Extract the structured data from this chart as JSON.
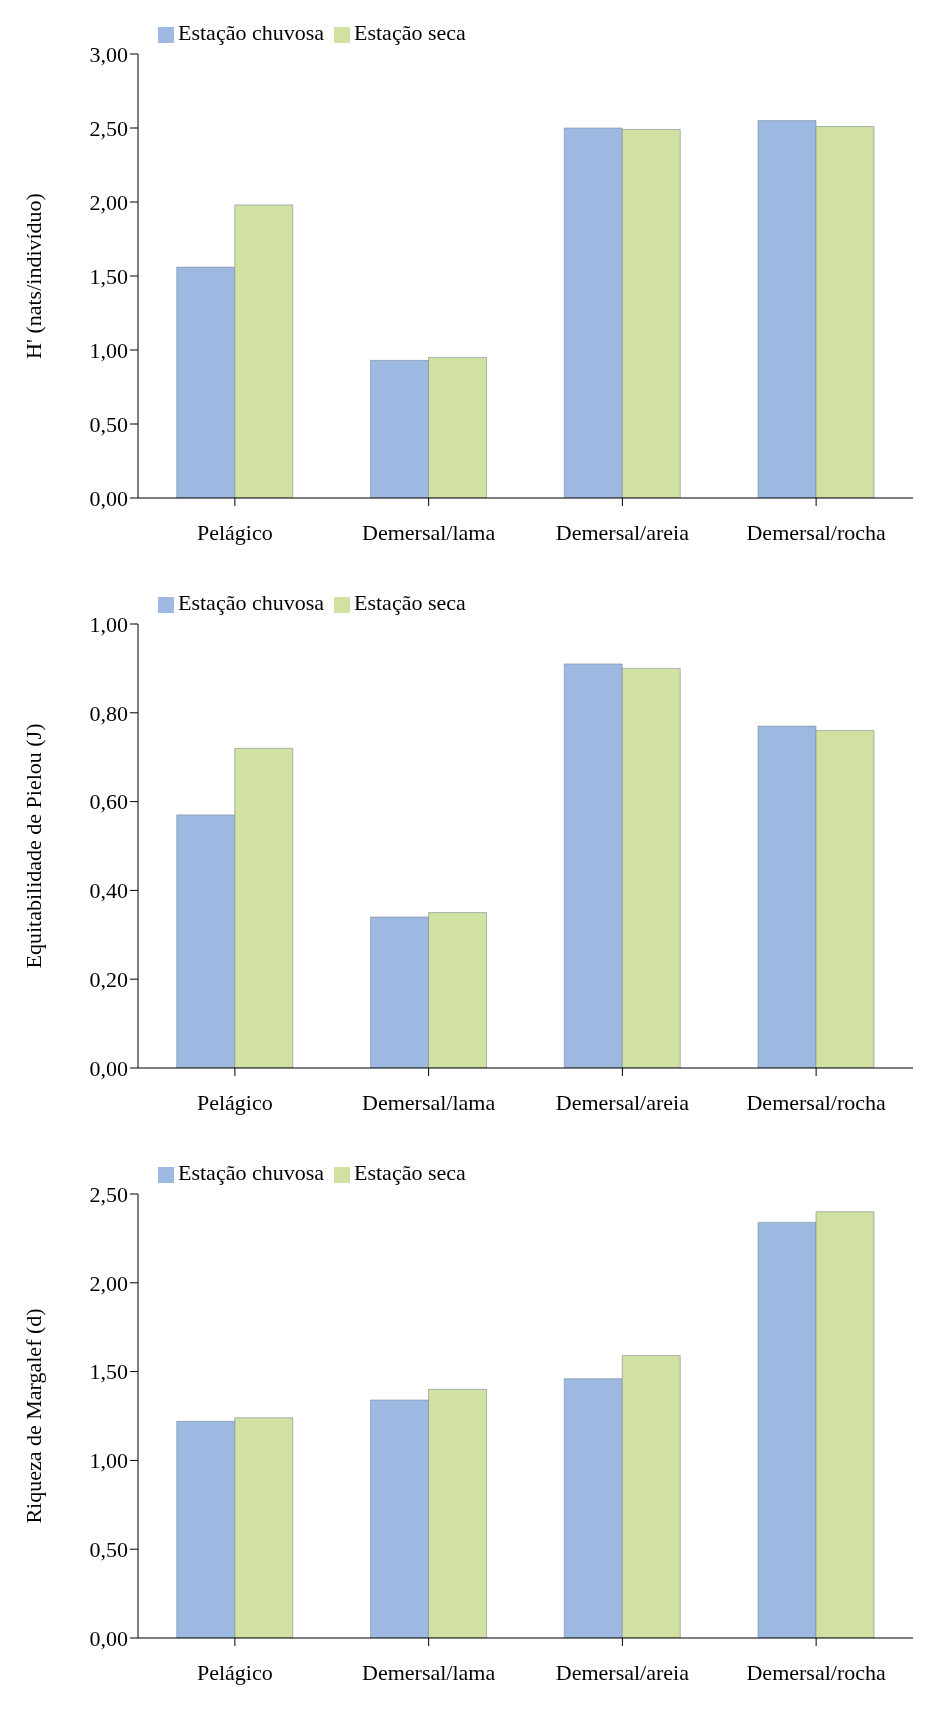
{
  "chart_data": [
    {
      "type": "bar",
      "ylabel": "H' (nats/indivíduo)",
      "categories": [
        "Pelágico",
        "Demersal/lama",
        "Demersal/areia",
        "Demersal/rocha"
      ],
      "series": [
        {
          "name": "Estação chuvosa",
          "color": "#9db9e1",
          "values": [
            1.56,
            0.93,
            2.5,
            2.55
          ]
        },
        {
          "name": "Estação seca",
          "color": "#d0e1a2",
          "values": [
            1.98,
            0.95,
            2.49,
            2.51
          ]
        }
      ],
      "ylim": [
        0,
        3
      ],
      "yticks": [
        {
          "value": 0,
          "label": "0,00"
        },
        {
          "value": 0.5,
          "label": "0,50"
        },
        {
          "value": 1,
          "label": "1,00"
        },
        {
          "value": 1.5,
          "label": "1,50"
        },
        {
          "value": 2,
          "label": "2,00"
        },
        {
          "value": 2.5,
          "label": "2,50"
        },
        {
          "value": 3,
          "label": "3,00"
        }
      ],
      "grid": false,
      "legend": "top left"
    },
    {
      "type": "bar",
      "ylabel": "Equitabilidade de Pielou  (J)",
      "categories": [
        "Pelágico",
        "Demersal/lama",
        "Demersal/areia",
        "Demersal/rocha"
      ],
      "series": [
        {
          "name": "Estação chuvosa",
          "color": "#9db9e1",
          "values": [
            0.57,
            0.34,
            0.91,
            0.77
          ]
        },
        {
          "name": "Estação seca",
          "color": "#d0e1a2",
          "values": [
            0.72,
            0.35,
            0.9,
            0.76
          ]
        }
      ],
      "ylim": [
        0,
        1
      ],
      "yticks": [
        {
          "value": 0,
          "label": "0,00"
        },
        {
          "value": 0.2,
          "label": "0,20"
        },
        {
          "value": 0.4,
          "label": "0,40"
        },
        {
          "value": 0.6,
          "label": "0,60"
        },
        {
          "value": 0.8,
          "label": "0,80"
        },
        {
          "value": 1,
          "label": "1,00"
        }
      ],
      "grid": false,
      "legend": "top left"
    },
    {
      "type": "bar",
      "ylabel": "Riqueza de Margalef (d)",
      "categories": [
        "Pelágico",
        "Demersal/lama",
        "Demersal/areia",
        "Demersal/rocha"
      ],
      "series": [
        {
          "name": "Estação chuvosa",
          "color": "#9db9e1",
          "values": [
            1.22,
            1.34,
            1.46,
            2.34
          ]
        },
        {
          "name": "Estação seca",
          "color": "#d0e1a2",
          "values": [
            1.24,
            1.4,
            1.59,
            2.4
          ]
        }
      ],
      "ylim": [
        0,
        2.5
      ],
      "yticks": [
        {
          "value": 0,
          "label": "0,00"
        },
        {
          "value": 0.5,
          "label": "0,50"
        },
        {
          "value": 1,
          "label": "1,00"
        },
        {
          "value": 1.5,
          "label": "1,50"
        },
        {
          "value": 2,
          "label": "2,00"
        },
        {
          "value": 2.5,
          "label": "2,50"
        }
      ],
      "grid": false,
      "legend": "top left"
    }
  ]
}
